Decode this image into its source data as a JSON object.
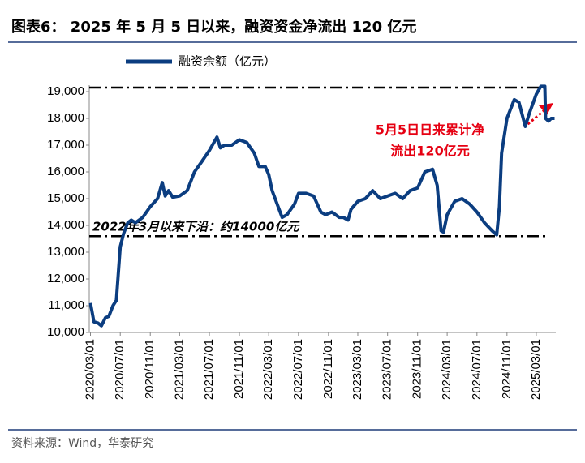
{
  "chart_data": {
    "type": "line",
    "title": "图表6： 2025 年 5 月 5 日以来，融资资金净流出 120 亿元",
    "source": "资料来源：Wind，华泰研究",
    "annotations": [
      "2022年3月以来下沿：约14000亿元",
      "5月5日日来累计净",
      "流出120亿元"
    ],
    "reference_lines": [
      19150,
      13600
    ],
    "x": [
      "2020/03/01",
      "2020/03/15",
      "2020/04/01",
      "2020/04/15",
      "2020/05/01",
      "2020/05/15",
      "2020/06/01",
      "2020/06/15",
      "2020/07/01",
      "2020/07/15",
      "2020/08/01",
      "2020/08/15",
      "2020/09/01",
      "2020/10/01",
      "2020/11/01",
      "2020/12/01",
      "2020/12/20",
      "2021/01/01",
      "2021/01/15",
      "2021/02/01",
      "2021/03/01",
      "2021/04/01",
      "2021/05/01",
      "2021/06/01",
      "2021/07/01",
      "2021/08/01",
      "2021/08/15",
      "2021/09/01",
      "2021/10/01",
      "2021/11/01",
      "2021/12/01",
      "2022/01/01",
      "2022/01/20",
      "2022/02/15",
      "2022/03/01",
      "2022/03/15",
      "2022/04/25",
      "2022/05/15",
      "2022/06/15",
      "2022/07/01",
      "2022/08/01",
      "2022/09/01",
      "2022/10/01",
      "2022/10/20",
      "2022/11/15",
      "2022/12/15",
      "2023/01/01",
      "2023/01/20",
      "2023/02/01",
      "2023/03/01",
      "2023/04/01",
      "2023/05/01",
      "2023/06/01",
      "2023/07/01",
      "2023/08/01",
      "2023/09/01",
      "2023/10/01",
      "2023/11/01",
      "2023/12/01",
      "2024/01/01",
      "2024/01/20",
      "2024/02/05",
      "2024/02/15",
      "2024/03/01",
      "2024/04/01",
      "2024/05/01",
      "2024/06/01",
      "2024/07/01",
      "2024/08/01",
      "2024/09/01",
      "2024/09/20",
      "2024/10/01",
      "2024/10/10",
      "2024/11/01",
      "2024/12/01",
      "2024/12/20",
      "2025/01/15",
      "2025/02/01",
      "2025/03/01",
      "2025/03/20",
      "2025/04/05",
      "2025/04/08",
      "2025/04/20",
      "2025/05/01",
      "2025/05/15"
    ],
    "series": [
      {
        "name": "融资余额（亿元）",
        "color": "#0b3d80",
        "values": [
          11100,
          10400,
          10350,
          10250,
          10550,
          10600,
          11000,
          11200,
          13200,
          13700,
          14100,
          14200,
          14100,
          14300,
          14700,
          15000,
          15600,
          15100,
          15300,
          15050,
          15100,
          15300,
          16000,
          16400,
          16800,
          17300,
          16900,
          17000,
          17000,
          17200,
          17100,
          16700,
          16200,
          16200,
          15900,
          15300,
          14300,
          14400,
          14800,
          15200,
          15200,
          15100,
          14500,
          14400,
          14500,
          14300,
          14300,
          14200,
          14600,
          14900,
          15000,
          15300,
          15000,
          15100,
          15200,
          15000,
          15300,
          15400,
          16000,
          16100,
          15500,
          13800,
          13750,
          14400,
          14900,
          15000,
          14800,
          14500,
          14100,
          13800,
          13650,
          14700,
          16700,
          18000,
          18700,
          18600,
          17700,
          18200,
          18900,
          19200,
          19200,
          18000,
          17900,
          18000,
          18000
        ]
      }
    ],
    "xlim": [
      "2020/02/25",
      "2025/05/20"
    ],
    "xticks": [
      "2020/03/01",
      "2020/07/01",
      "2020/11/01",
      "2021/03/01",
      "2021/07/01",
      "2021/11/01",
      "2022/03/01",
      "2022/07/01",
      "2022/11/01",
      "2023/03/01",
      "2023/07/01",
      "2023/11/01",
      "2024/03/01",
      "2024/07/01",
      "2024/11/01",
      "2025/03/01"
    ],
    "ylim": [
      10000,
      19000
    ],
    "yticks": [
      {
        "value": 10000,
        "label": "10,000"
      },
      {
        "value": 11000,
        "label": "11,000"
      },
      {
        "value": 12000,
        "label": "12,000"
      },
      {
        "value": 13000,
        "label": "13,000"
      },
      {
        "value": 14000,
        "label": "14,000"
      },
      {
        "value": 15000,
        "label": "15,000"
      },
      {
        "value": 16000,
        "label": "16,000"
      },
      {
        "value": 17000,
        "label": "17,000"
      },
      {
        "value": 18000,
        "label": "18,000"
      },
      {
        "value": 19000,
        "label": "19,000"
      }
    ],
    "grid": false
  }
}
